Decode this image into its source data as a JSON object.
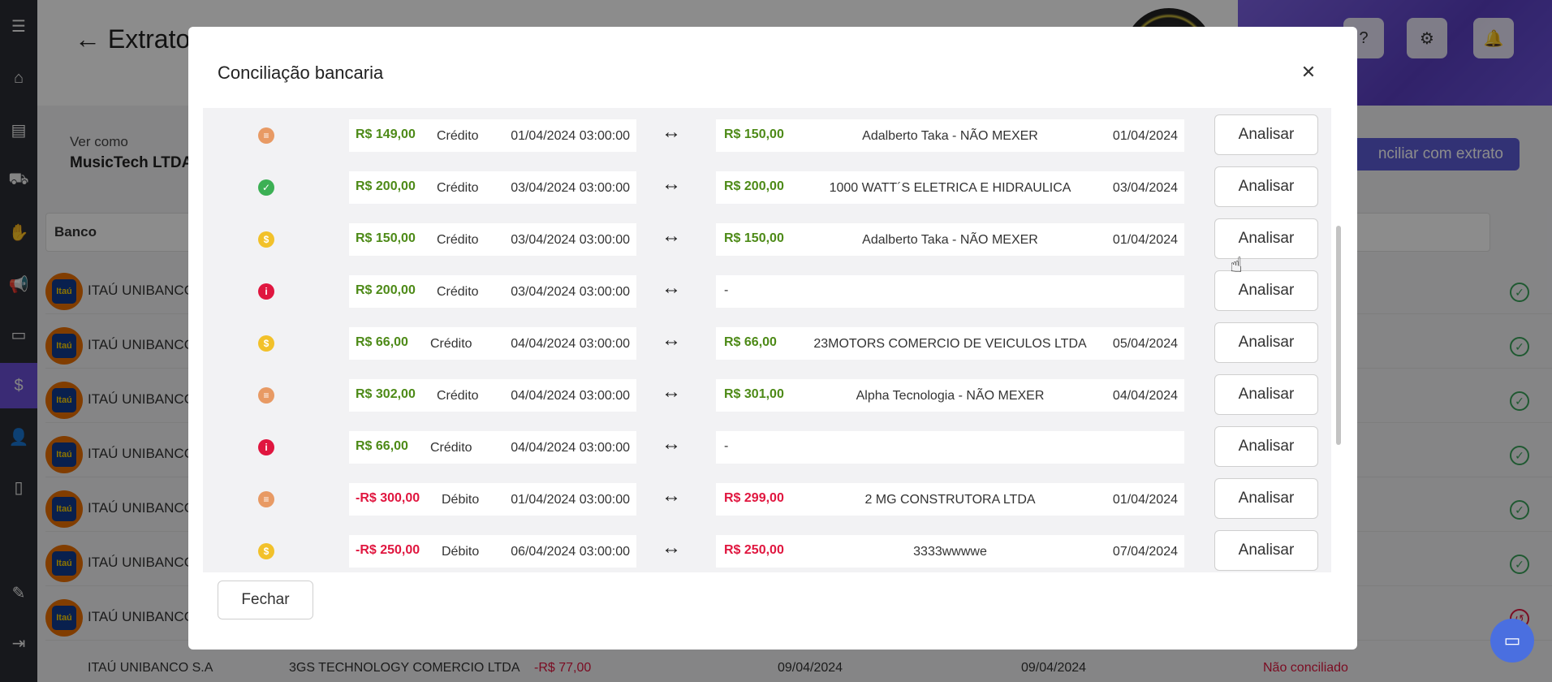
{
  "background": {
    "page_title": "Extrato d",
    "ver_como_label": "Ver como",
    "company_name": "MusicTech LTDA",
    "conciliar_button": "nciliar com extrato",
    "table_header_bank": "Banco",
    "bank_rows": [
      {
        "bank": "ITAÚ UNIBANCO"
      },
      {
        "bank": "ITAÚ UNIBANCO"
      },
      {
        "bank": "ITAÚ UNIBANCO"
      },
      {
        "bank": "ITAÚ UNIBANCO"
      },
      {
        "bank": "ITAÚ UNIBANCO"
      },
      {
        "bank": "ITAÚ UNIBANCO"
      },
      {
        "bank": "ITAÚ UNIBANCO"
      }
    ],
    "bank_logo_text": "Itaú",
    "last_row": {
      "bank": "ITAÚ UNIBANCO S.A",
      "company": "3GS TECHNOLOGY COMERCIO LTDA",
      "amount": "-R$ 77,00",
      "date1": "09/04/2024",
      "date2": "09/04/2024",
      "status": "Não conciliado"
    }
  },
  "modal": {
    "title": "Conciliação bancaria",
    "close_icon": "close-icon",
    "fechar_label": "Fechar",
    "analisar_label": "Analisar",
    "arrow_glyph": "↔",
    "rows": [
      {
        "status": "list",
        "amount": "R$ 149,00",
        "sign": "pos",
        "type": "Crédito",
        "date": "01/04/2024 03:00:00",
        "match_amount": "R$ 150,00",
        "match_sign": "pos",
        "match_desc": "Adalberto Taka - NÃO MEXER",
        "match_date": "01/04/2024"
      },
      {
        "status": "ok",
        "amount": "R$ 200,00",
        "sign": "pos",
        "type": "Crédito",
        "date": "03/04/2024 03:00:00",
        "match_amount": "R$ 200,00",
        "match_sign": "pos",
        "match_desc": "1000 WATT´S ELETRICA E HIDRAULICA",
        "match_date": "03/04/2024"
      },
      {
        "status": "money",
        "amount": "R$ 150,00",
        "sign": "pos",
        "type": "Crédito",
        "date": "03/04/2024 03:00:00",
        "match_amount": "R$ 150,00",
        "match_sign": "pos",
        "match_desc": "Adalberto Taka - NÃO MEXER",
        "match_date": "01/04/2024"
      },
      {
        "status": "info",
        "amount": "R$ 200,00",
        "sign": "pos",
        "type": "Crédito",
        "date": "03/04/2024 03:00:00",
        "match_amount": "",
        "match_sign": "pos",
        "match_desc": "",
        "match_date": "",
        "match_dash": "-"
      },
      {
        "status": "money",
        "amount": "R$ 66,00",
        "sign": "pos",
        "type": "Crédito",
        "date": "04/04/2024 03:00:00",
        "match_amount": "R$ 66,00",
        "match_sign": "pos",
        "match_desc": "23MOTORS COMERCIO DE VEICULOS LTDA",
        "match_date": "05/04/2024"
      },
      {
        "status": "list",
        "amount": "R$ 302,00",
        "sign": "pos",
        "type": "Crédito",
        "date": "04/04/2024 03:00:00",
        "match_amount": "R$ 301,00",
        "match_sign": "pos",
        "match_desc": "Alpha Tecnologia - NÃO MEXER",
        "match_date": "04/04/2024"
      },
      {
        "status": "info",
        "amount": "R$ 66,00",
        "sign": "pos",
        "type": "Crédito",
        "date": "04/04/2024 03:00:00",
        "match_amount": "",
        "match_sign": "pos",
        "match_desc": "",
        "match_date": "",
        "match_dash": "-"
      },
      {
        "status": "list",
        "amount": "-R$ 300,00",
        "sign": "neg",
        "type": "Débito",
        "date": "01/04/2024 03:00:00",
        "match_amount": "R$ 299,00",
        "match_sign": "neg",
        "match_desc": "2 MG CONSTRUTORA LTDA",
        "match_date": "01/04/2024"
      },
      {
        "status": "money",
        "amount": "-R$ 250,00",
        "sign": "neg",
        "type": "Débito",
        "date": "06/04/2024 03:00:00",
        "match_amount": "R$ 250,00",
        "match_sign": "neg",
        "match_desc": "3333wwwwe",
        "match_date": "07/04/2024"
      }
    ]
  },
  "colors": {
    "credit": "#4d8a17",
    "debit": "#e0163f",
    "accent": "#5b5bd6",
    "status_ok": "#3cb054",
    "status_money": "#f2c12a",
    "status_info": "#e0163f",
    "status_list": "#e89a64"
  }
}
